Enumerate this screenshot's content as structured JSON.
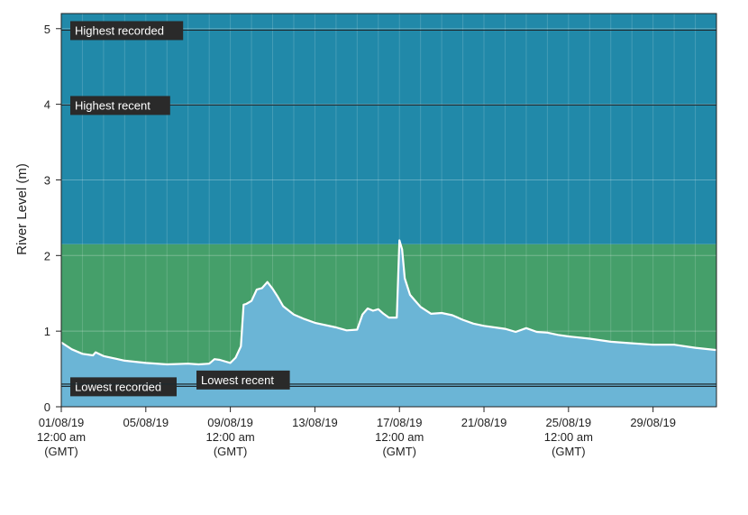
{
  "chart_data": {
    "type": "area",
    "ylabel": "River Level (m)",
    "xlabel": "",
    "ylim": [
      0,
      5.2
    ],
    "xlim": [
      "2019-08-01",
      "2019-09-01"
    ],
    "y_ticks": [
      "0",
      "1",
      "2",
      "3",
      "4",
      "5"
    ],
    "x_ticks": [
      {
        "date": "2019-08-01",
        "lines": [
          "01/08/19",
          "12:00 am",
          "(GMT)"
        ]
      },
      {
        "date": "2019-08-05",
        "lines": [
          "05/08/19",
          "",
          ""
        ]
      },
      {
        "date": "2019-08-09",
        "lines": [
          "09/08/19",
          "12:00 am",
          "(GMT)"
        ]
      },
      {
        "date": "2019-08-13",
        "lines": [
          "13/08/19",
          "",
          ""
        ]
      },
      {
        "date": "2019-08-17",
        "lines": [
          "17/08/19",
          "12:00 am",
          "(GMT)"
        ]
      },
      {
        "date": "2019-08-21",
        "lines": [
          "21/08/19",
          "",
          ""
        ]
      },
      {
        "date": "2019-08-25",
        "lines": [
          "25/08/19",
          "12:00 am",
          "(GMT)"
        ]
      },
      {
        "date": "2019-08-29",
        "lines": [
          "29/08/19",
          "",
          ""
        ]
      }
    ],
    "bands": [
      {
        "from": 0,
        "to": 0.3,
        "color": "#6bb5d6"
      },
      {
        "from": 0.3,
        "to": 2.15,
        "color": "#459f6a"
      },
      {
        "from": 2.15,
        "to": 5.2,
        "color": "#2189a9"
      }
    ],
    "reference_lines": [
      {
        "label": "Highest recorded",
        "value": 4.98
      },
      {
        "label": "Highest recent",
        "value": 3.99
      },
      {
        "label": "Lowest recorded",
        "value": 0.27
      },
      {
        "label": "Lowest recent",
        "value": 0.3
      }
    ],
    "series": [
      {
        "color": "#ffffff",
        "fill": "#6bb5d6",
        "x": [
          "2019-08-01T00:00",
          "2019-08-01T12:00",
          "2019-08-02T00:00",
          "2019-08-02T12:00",
          "2019-08-02T15:00",
          "2019-08-03T00:00",
          "2019-08-03T12:00",
          "2019-08-04T00:00",
          "2019-08-05T00:00",
          "2019-08-06T00:00",
          "2019-08-07T00:00",
          "2019-08-07T12:00",
          "2019-08-08T00:00",
          "2019-08-08T06:00",
          "2019-08-08T12:00",
          "2019-08-09T00:00",
          "2019-08-09T06:00",
          "2019-08-09T12:00",
          "2019-08-09T15:00",
          "2019-08-09T18:00",
          "2019-08-10T00:00",
          "2019-08-10T06:00",
          "2019-08-10T12:00",
          "2019-08-10T18:00",
          "2019-08-11T00:00",
          "2019-08-11T06:00",
          "2019-08-11T12:00",
          "2019-08-12T00:00",
          "2019-08-12T12:00",
          "2019-08-13T00:00",
          "2019-08-14T00:00",
          "2019-08-14T12:00",
          "2019-08-15T00:00",
          "2019-08-15T06:00",
          "2019-08-15T12:00",
          "2019-08-15T18:00",
          "2019-08-16T00:00",
          "2019-08-16T06:00",
          "2019-08-16T12:00",
          "2019-08-16T21:00",
          "2019-08-17T00:00",
          "2019-08-17T03:00",
          "2019-08-17T06:00",
          "2019-08-17T12:00",
          "2019-08-17T18:00",
          "2019-08-18T00:00",
          "2019-08-18T12:00",
          "2019-08-19T00:00",
          "2019-08-19T12:00",
          "2019-08-20T00:00",
          "2019-08-20T12:00",
          "2019-08-21T00:00",
          "2019-08-22T00:00",
          "2019-08-22T12:00",
          "2019-08-23T00:00",
          "2019-08-23T12:00",
          "2019-08-24T00:00",
          "2019-08-24T12:00",
          "2019-08-25T00:00",
          "2019-08-26T00:00",
          "2019-08-27T00:00",
          "2019-08-28T00:00",
          "2019-08-29T00:00",
          "2019-08-30T00:00",
          "2019-08-31T00:00",
          "2019-09-01T00:00"
        ],
        "y": [
          0.85,
          0.76,
          0.7,
          0.68,
          0.72,
          0.67,
          0.64,
          0.61,
          0.58,
          0.56,
          0.57,
          0.56,
          0.57,
          0.63,
          0.62,
          0.58,
          0.65,
          0.8,
          1.35,
          1.36,
          1.4,
          1.55,
          1.57,
          1.65,
          1.56,
          1.45,
          1.33,
          1.22,
          1.16,
          1.11,
          1.05,
          1.01,
          1.02,
          1.22,
          1.3,
          1.27,
          1.29,
          1.23,
          1.18,
          1.18,
          2.2,
          2.08,
          1.7,
          1.48,
          1.4,
          1.32,
          1.23,
          1.24,
          1.21,
          1.15,
          1.1,
          1.07,
          1.03,
          0.99,
          1.04,
          0.99,
          0.98,
          0.95,
          0.93,
          0.9,
          0.86,
          0.84,
          0.82,
          0.82,
          0.78,
          0.75
        ]
      }
    ],
    "grid": true
  }
}
